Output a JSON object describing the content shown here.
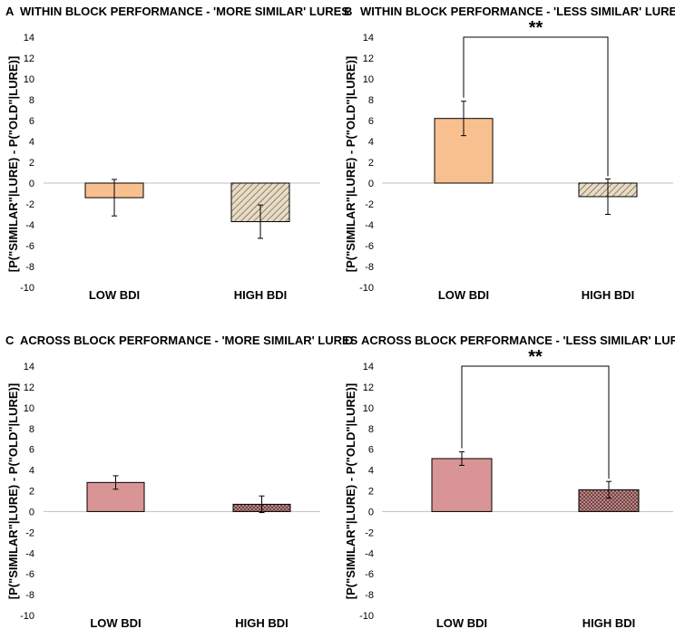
{
  "chart_data": [
    {
      "letter": "A",
      "title": "WITHIN BLOCK PERFORMANCE - 'MORE SIMILAR' LURES",
      "type": "bar",
      "ylabel": "[P(\"SIMILAR\"|LURE) - P(\"OLD\"|LURE)]",
      "yticks": [
        14,
        12,
        10,
        8,
        6,
        4,
        2,
        0,
        -2,
        -4,
        -6,
        -8,
        -10
      ],
      "ylim": [
        -10,
        14
      ],
      "categories": [
        "LOW BDI",
        "HIGH BDI"
      ],
      "values": [
        -1.4,
        -3.7
      ],
      "errors": [
        1.75,
        1.6
      ],
      "significance": null
    },
    {
      "letter": "B",
      "title": "WITHIN BLOCK PERFORMANCE - 'LESS SIMILAR' LURES",
      "type": "bar",
      "ylabel": "[P(\"SIMILAR\"|LURE) - P(\"OLD\"|LURE)]",
      "yticks": [
        14,
        12,
        10,
        8,
        6,
        4,
        2,
        0,
        -2,
        -4,
        -6,
        -8,
        -10
      ],
      "ylim": [
        -10,
        14
      ],
      "categories": [
        "LOW BDI",
        "HIGH BDI"
      ],
      "values": [
        6.2,
        -1.3
      ],
      "errors": [
        1.65,
        1.7
      ],
      "significance": "**"
    },
    {
      "letter": "C",
      "title": "ACROSS BLOCK PERFORMANCE - 'MORE SIMILAR' LURES",
      "type": "bar",
      "ylabel": "[P(\"SIMILAR\"|LURE) - P(\"OLD\"|LURE)]",
      "yticks": [
        14,
        12,
        10,
        8,
        6,
        4,
        2,
        0,
        -2,
        -4,
        -6,
        -8,
        -10
      ],
      "ylim": [
        -10,
        14
      ],
      "categories": [
        "LOW BDI",
        "HIGH BDI"
      ],
      "values": [
        2.8,
        0.7
      ],
      "errors": [
        0.65,
        0.8
      ],
      "significance": null
    },
    {
      "letter": "D",
      "title": "ACROSS BLOCK PERFORMANCE - 'LESS SIMILAR' LURES",
      "type": "bar",
      "ylabel": "[P(\"SIMILAR\"|LURE) - P(\"OLD\"|LURE)]",
      "yticks": [
        14,
        12,
        10,
        8,
        6,
        4,
        2,
        0,
        -2,
        -4,
        -6,
        -8,
        -10
      ],
      "ylim": [
        -10,
        14
      ],
      "categories": [
        "LOW BDI",
        "HIGH BDI"
      ],
      "values": [
        5.1,
        2.1
      ],
      "errors": [
        0.65,
        0.8
      ],
      "significance": "**"
    }
  ],
  "colors": {
    "within_low_fill": "#f9c08f",
    "within_high_fill": "#e8dcc6",
    "across_low_fill": "#d99595",
    "across_high_fill": "#d99595",
    "pattern_line": "#6b5a45",
    "pattern_line_across": "#5a3b3b",
    "bar_edge": "#000000",
    "axis": "#bfbfbf",
    "text": "#000000"
  }
}
